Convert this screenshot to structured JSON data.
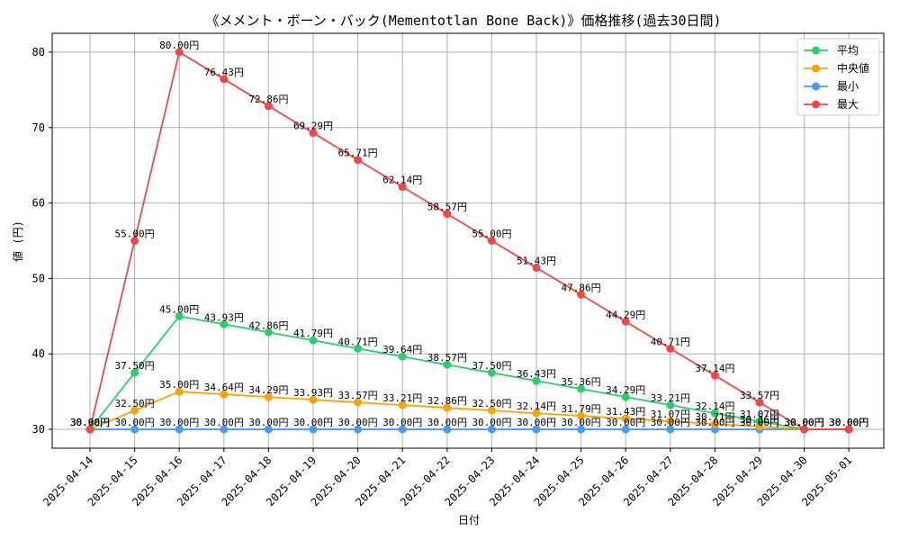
{
  "chart_data": {
    "type": "line",
    "title": "《メメント・ボーン・バック(Mementotlan Bone Back)》価格推移(過去30日間)",
    "xlabel": "日付",
    "ylabel": "値 (円)",
    "ylim": [
      27.5,
      82.5
    ],
    "yticks": [
      30,
      40,
      50,
      60,
      70,
      80
    ],
    "grid": true,
    "legend_position": "top-right",
    "label_suffix": "円",
    "categories": [
      "2025-04-14",
      "2025-04-15",
      "2025-04-16",
      "2025-04-17",
      "2025-04-18",
      "2025-04-19",
      "2025-04-20",
      "2025-04-21",
      "2025-04-22",
      "2025-04-23",
      "2025-04-24",
      "2025-04-25",
      "2025-04-26",
      "2025-04-27",
      "2025-04-28",
      "2025-04-29",
      "2025-04-30",
      "2025-05-01"
    ],
    "series": [
      {
        "name": "平均",
        "color": "#2ecc71",
        "values": [
          30.0,
          37.5,
          45.0,
          43.93,
          42.86,
          41.79,
          40.71,
          39.64,
          38.57,
          37.5,
          36.43,
          35.36,
          34.29,
          33.21,
          32.14,
          31.07,
          30.0,
          30.0
        ]
      },
      {
        "name": "中央値",
        "color": "#f5a30a",
        "values": [
          30.0,
          32.5,
          35.0,
          34.64,
          34.29,
          33.93,
          33.57,
          33.21,
          32.86,
          32.5,
          32.14,
          31.79,
          31.43,
          31.07,
          30.71,
          30.36,
          30.0,
          30.0
        ]
      },
      {
        "name": "最小",
        "color": "#4a9af5",
        "values": [
          30.0,
          30.0,
          30.0,
          30.0,
          30.0,
          30.0,
          30.0,
          30.0,
          30.0,
          30.0,
          30.0,
          30.0,
          30.0,
          30.0,
          30.0,
          30.0,
          30.0,
          30.0
        ]
      },
      {
        "name": "最大",
        "color": "#f04848",
        "values": [
          30.0,
          55.0,
          80.0,
          76.43,
          72.86,
          69.29,
          65.71,
          62.14,
          58.57,
          55.0,
          51.43,
          47.86,
          44.29,
          40.71,
          37.14,
          33.57,
          30.0,
          30.0
        ]
      }
    ]
  }
}
